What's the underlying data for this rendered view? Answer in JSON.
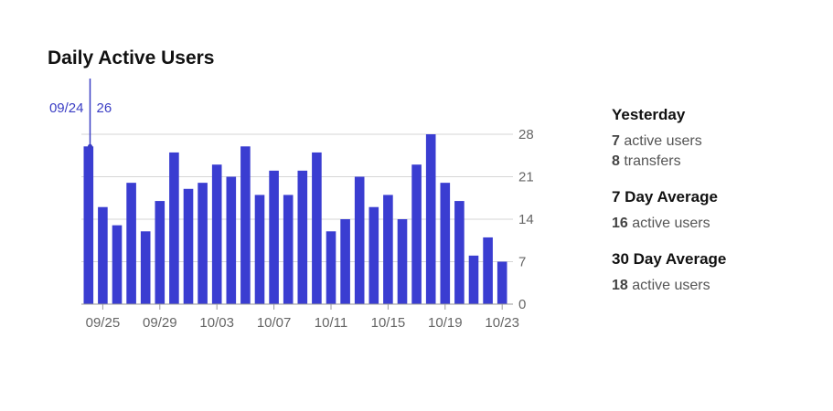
{
  "chart_data": {
    "type": "bar",
    "title": "Daily Active Users",
    "categories": [
      "09/24",
      "09/25",
      "09/26",
      "09/27",
      "09/28",
      "09/29",
      "09/30",
      "10/01",
      "10/02",
      "10/03",
      "10/04",
      "10/05",
      "10/06",
      "10/07",
      "10/08",
      "10/09",
      "10/10",
      "10/11",
      "10/12",
      "10/13",
      "10/14",
      "10/15",
      "10/16",
      "10/17",
      "10/18",
      "10/19",
      "10/20",
      "10/21",
      "10/22",
      "10/23"
    ],
    "values": [
      26,
      16,
      13,
      20,
      12,
      17,
      25,
      19,
      20,
      23,
      21,
      26,
      18,
      22,
      18,
      22,
      25,
      12,
      14,
      21,
      16,
      18,
      14,
      23,
      28,
      20,
      17,
      8,
      11,
      7
    ],
    "x_tick_labels": [
      "09/25",
      "09/29",
      "10/03",
      "10/07",
      "10/11",
      "10/15",
      "10/19",
      "10/23"
    ],
    "y_ticks": [
      0,
      7,
      14,
      21,
      28
    ],
    "ylim": [
      0,
      28
    ],
    "grid": true,
    "bar_color": "#3a3dd1",
    "hover": {
      "date": "09/24",
      "value": "26"
    }
  },
  "stats": {
    "yesterday": {
      "heading": "Yesterday",
      "active_count": "7",
      "active_label": "active users",
      "transfer_count": "8",
      "transfer_label": "transfers"
    },
    "seven_day": {
      "heading": "7 Day Average",
      "active_count": "16",
      "active_label": "active users"
    },
    "thirty_day": {
      "heading": "30 Day Average",
      "active_count": "18",
      "active_label": "active users"
    }
  }
}
